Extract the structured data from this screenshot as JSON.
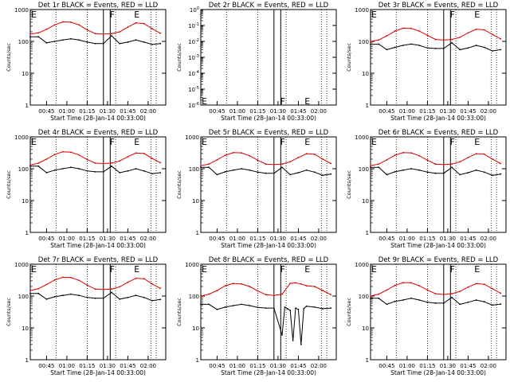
{
  "shared": {
    "xlabel": "Start Time (28-Jan-14 00:33:00)",
    "ylabel": "Counts/sec",
    "x_tick_labels": [
      "00:45",
      "01:00",
      "01:15",
      "01:30",
      "01:45",
      "02:00"
    ],
    "x_tick_minutes": [
      12,
      27,
      42,
      57,
      72,
      87
    ],
    "x_range_minutes": [
      0,
      100
    ],
    "flag_labels": [
      "E",
      "F",
      "E"
    ],
    "flag_positions_minutes": [
      0,
      58,
      76
    ],
    "solid_lines_minutes": [
      54,
      59
    ],
    "dotted_lines_minutes": [
      19,
      42,
      63,
      89,
      93
    ],
    "series_colors": {
      "events": "#000000",
      "lld": "#dd0000"
    }
  },
  "chart_data": [
    {
      "type": "line",
      "title": "Det 1r  BLACK = Events, RED = LLD",
      "yscale": "log",
      "ylim": [
        1,
        1000
      ],
      "y_tick_labels": [
        "1",
        "10",
        "100",
        "1000"
      ],
      "series": [
        {
          "name": "Events",
          "x": [
            0,
            6,
            12,
            18,
            24,
            30,
            36,
            42,
            48,
            54,
            60,
            66,
            72,
            78,
            84,
            90,
            96
          ],
          "values": [
            140,
            140,
            90,
            100,
            110,
            120,
            110,
            95,
            85,
            85,
            150,
            85,
            95,
            110,
            95,
            80,
            85
          ]
        },
        {
          "name": "LLD",
          "x": [
            0,
            6,
            12,
            18,
            24,
            30,
            36,
            42,
            48,
            54,
            60,
            66,
            72,
            78,
            84,
            90,
            96
          ],
          "values": [
            170,
            185,
            240,
            330,
            410,
            400,
            330,
            230,
            175,
            170,
            175,
            200,
            280,
            380,
            360,
            250,
            180
          ]
        }
      ]
    },
    {
      "type": "line",
      "title": "Det 2r  BLACK = Events, RED = LLD",
      "yscale": "log",
      "ylim": [
        1e-06,
        1
      ],
      "y_tick_labels": [
        "10^-6",
        "10^-5",
        "10^-4",
        "10^-3",
        "10^-2",
        "10^-1",
        "10^0"
      ],
      "series": []
    },
    {
      "type": "line",
      "title": "Det 3r  BLACK = Events, RED = LLD",
      "yscale": "log",
      "ylim": [
        1,
        1000
      ],
      "y_tick_labels": [
        "1",
        "10",
        "100",
        "1000"
      ],
      "series": [
        {
          "name": "Events",
          "x": [
            0,
            6,
            12,
            18,
            24,
            30,
            36,
            42,
            48,
            54,
            60,
            66,
            72,
            78,
            84,
            90,
            96
          ],
          "values": [
            80,
            82,
            55,
            65,
            75,
            82,
            75,
            62,
            60,
            60,
            90,
            55,
            62,
            75,
            65,
            50,
            55
          ]
        },
        {
          "name": "LLD",
          "x": [
            0,
            6,
            12,
            18,
            24,
            30,
            36,
            42,
            48,
            54,
            60,
            66,
            72,
            78,
            84,
            90,
            96
          ],
          "values": [
            100,
            110,
            150,
            210,
            260,
            255,
            210,
            155,
            115,
            110,
            115,
            135,
            185,
            240,
            230,
            165,
            120
          ]
        }
      ]
    },
    {
      "type": "line",
      "title": "Det 4r  BLACK = Events, RED = LLD",
      "yscale": "log",
      "ylim": [
        1,
        1000
      ],
      "y_tick_labels": [
        "1",
        "10",
        "100",
        "1000"
      ],
      "series": [
        {
          "name": "Events",
          "x": [
            0,
            6,
            12,
            18,
            24,
            30,
            36,
            42,
            48,
            54,
            60,
            66,
            72,
            78,
            84,
            90,
            96
          ],
          "values": [
            120,
            120,
            75,
            90,
            100,
            110,
            100,
            85,
            80,
            80,
            120,
            75,
            85,
            100,
            85,
            70,
            75
          ]
        },
        {
          "name": "LLD",
          "x": [
            0,
            6,
            12,
            18,
            24,
            30,
            36,
            42,
            48,
            54,
            60,
            66,
            72,
            78,
            84,
            90,
            96
          ],
          "values": [
            130,
            150,
            200,
            280,
            340,
            330,
            270,
            195,
            150,
            145,
            150,
            175,
            240,
            310,
            300,
            210,
            155
          ]
        }
      ]
    },
    {
      "type": "line",
      "title": "Det 5r  BLACK = Events, RED = LLD",
      "yscale": "log",
      "ylim": [
        1,
        1000
      ],
      "y_tick_labels": [
        "1",
        "10",
        "100",
        "1000"
      ],
      "series": [
        {
          "name": "Events",
          "x": [
            0,
            6,
            12,
            18,
            24,
            30,
            36,
            42,
            48,
            54,
            60,
            66,
            72,
            78,
            84,
            90,
            96
          ],
          "values": [
            110,
            110,
            65,
            80,
            90,
            100,
            90,
            78,
            72,
            72,
            110,
            65,
            75,
            90,
            78,
            62,
            68
          ]
        },
        {
          "name": "LLD",
          "x": [
            0,
            6,
            12,
            18,
            24,
            30,
            36,
            42,
            48,
            54,
            60,
            66,
            72,
            78,
            84,
            90,
            96
          ],
          "values": [
            125,
            140,
            190,
            265,
            320,
            315,
            255,
            185,
            140,
            135,
            140,
            165,
            225,
            295,
            285,
            200,
            145
          ]
        }
      ]
    },
    {
      "type": "line",
      "title": "Det 6r  BLACK = Events, RED = LLD",
      "yscale": "log",
      "ylim": [
        1,
        1000
      ],
      "y_tick_labels": [
        "1",
        "10",
        "100",
        "1000"
      ],
      "series": [
        {
          "name": "Events",
          "x": [
            0,
            6,
            12,
            18,
            24,
            30,
            36,
            42,
            48,
            54,
            60,
            66,
            72,
            78,
            84,
            90,
            96
          ],
          "values": [
            110,
            110,
            65,
            80,
            90,
            100,
            90,
            78,
            72,
            72,
            110,
            65,
            75,
            90,
            78,
            62,
            68
          ]
        },
        {
          "name": "LLD",
          "x": [
            0,
            6,
            12,
            18,
            24,
            30,
            36,
            42,
            48,
            54,
            60,
            66,
            72,
            78,
            84,
            90,
            96
          ],
          "values": [
            125,
            140,
            190,
            265,
            320,
            315,
            255,
            185,
            140,
            135,
            140,
            165,
            225,
            295,
            285,
            200,
            145
          ]
        }
      ]
    },
    {
      "type": "line",
      "title": "Det 7r  BLACK = Events, RED = LLD",
      "yscale": "log",
      "ylim": [
        1,
        1000
      ],
      "y_tick_labels": [
        "1",
        "10",
        "100",
        "1000"
      ],
      "series": [
        {
          "name": "Events",
          "x": [
            0,
            6,
            12,
            18,
            24,
            30,
            36,
            42,
            48,
            54,
            60,
            66,
            72,
            78,
            84,
            90,
            96
          ],
          "values": [
            120,
            120,
            80,
            95,
            105,
            115,
            105,
            90,
            85,
            85,
            130,
            80,
            90,
            105,
            90,
            72,
            78
          ]
        },
        {
          "name": "LLD",
          "x": [
            0,
            6,
            12,
            18,
            24,
            30,
            36,
            42,
            48,
            54,
            60,
            66,
            72,
            78,
            84,
            90,
            96
          ],
          "values": [
            150,
            170,
            230,
            320,
            390,
            380,
            310,
            220,
            165,
            160,
            165,
            195,
            270,
            360,
            350,
            240,
            175
          ]
        }
      ]
    },
    {
      "type": "line",
      "title": "Det 8r  BLACK = Events, RED = LLD",
      "yscale": "log",
      "ylim": [
        1,
        1000
      ],
      "y_tick_labels": [
        "1",
        "10",
        "100",
        "1000"
      ],
      "series": [
        {
          "name": "Events",
          "x": [
            0,
            6,
            12,
            18,
            24,
            30,
            36,
            42,
            48,
            54,
            60,
            62,
            64,
            66,
            68,
            70,
            72,
            74,
            76,
            78,
            84,
            90,
            96
          ],
          "values": [
            55,
            55,
            38,
            45,
            50,
            55,
            50,
            44,
            42,
            42,
            6,
            45,
            40,
            35,
            4,
            42,
            38,
            3,
            40,
            48,
            45,
            40,
            42
          ]
        },
        {
          "name": "LLD",
          "x": [
            0,
            6,
            12,
            18,
            24,
            30,
            36,
            42,
            48,
            54,
            60,
            66,
            70,
            74,
            78,
            84,
            90,
            96
          ],
          "values": [
            100,
            115,
            150,
            210,
            250,
            240,
            200,
            145,
            110,
            105,
            115,
            250,
            260,
            240,
            210,
            200,
            150,
            110
          ]
        }
      ]
    },
    {
      "type": "line",
      "title": "Det 9r  BLACK = Events, RED = LLD",
      "yscale": "log",
      "ylim": [
        1,
        1000
      ],
      "y_tick_labels": [
        "1",
        "10",
        "100",
        "1000"
      ],
      "series": [
        {
          "name": "Events",
          "x": [
            0,
            6,
            12,
            18,
            24,
            30,
            36,
            42,
            48,
            54,
            60,
            66,
            72,
            78,
            84,
            90,
            96
          ],
          "values": [
            85,
            85,
            55,
            68,
            75,
            85,
            75,
            64,
            60,
            60,
            90,
            55,
            64,
            75,
            66,
            52,
            56
          ]
        },
        {
          "name": "LLD",
          "x": [
            0,
            6,
            12,
            18,
            24,
            30,
            36,
            42,
            48,
            54,
            60,
            66,
            72,
            78,
            84,
            90,
            96
          ],
          "values": [
            100,
            115,
            155,
            215,
            265,
            260,
            210,
            155,
            118,
            112,
            118,
            140,
            190,
            245,
            235,
            170,
            122
          ]
        }
      ]
    }
  ]
}
